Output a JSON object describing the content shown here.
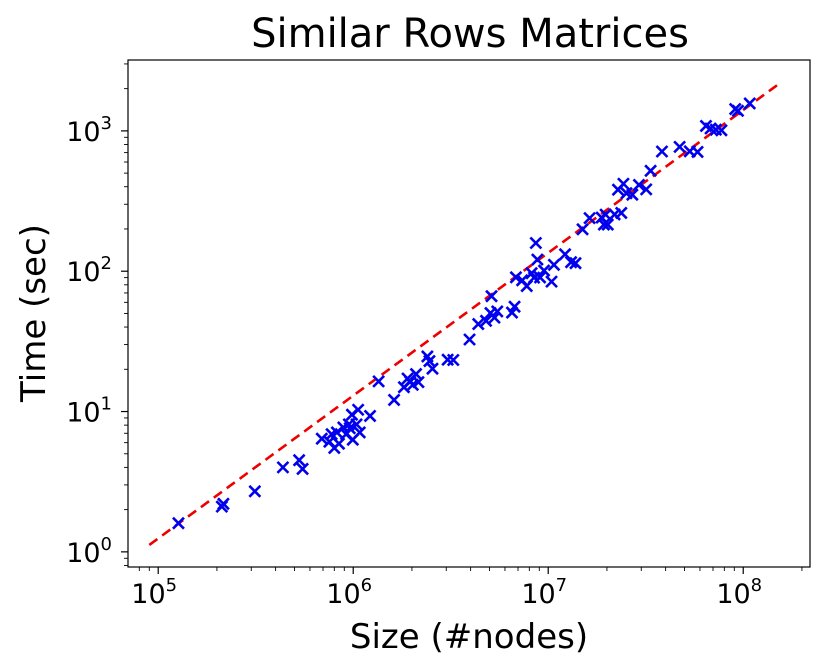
{
  "chart_data": {
    "type": "scatter",
    "title": "Similar Rows Matrices",
    "xlabel": "Size (#nodes)",
    "ylabel": "Time (sec)",
    "xscale": "log",
    "yscale": "log",
    "xlim": [
      70000,
      220000000
    ],
    "ylim": [
      0.78,
      3200
    ],
    "x_ticks": [
      {
        "base": "10",
        "exp": "5",
        "value": 100000
      },
      {
        "base": "10",
        "exp": "6",
        "value": 1000000
      },
      {
        "base": "10",
        "exp": "7",
        "value": 10000000
      },
      {
        "base": "10",
        "exp": "8",
        "value": 100000000
      }
    ],
    "y_ticks": [
      {
        "base": "10",
        "exp": "0",
        "value": 1
      },
      {
        "base": "10",
        "exp": "1",
        "value": 10
      },
      {
        "base": "10",
        "exp": "2",
        "value": 100
      },
      {
        "base": "10",
        "exp": "3",
        "value": 1000
      }
    ],
    "grid": false,
    "legend": "none",
    "colors": {
      "points": "#0000ee",
      "fit_line": "#ee0000"
    },
    "series": [
      {
        "marker": "x",
        "points": [
          [
            127000,
            1.6
          ],
          [
            212000,
            2.1
          ],
          [
            216000,
            2.2
          ],
          [
            313000,
            2.7
          ],
          [
            436000,
            4.0
          ],
          [
            528000,
            4.5
          ],
          [
            550000,
            3.9
          ],
          [
            690000,
            6.4
          ],
          [
            755000,
            6.1
          ],
          [
            775000,
            6.9
          ],
          [
            800000,
            5.5
          ],
          [
            825000,
            7.1
          ],
          [
            845000,
            5.9
          ],
          [
            890000,
            7.7
          ],
          [
            920000,
            6.9
          ],
          [
            950000,
            8.1
          ],
          [
            960000,
            7.6
          ],
          [
            985000,
            9.5
          ],
          [
            995000,
            6.3
          ],
          [
            1040000,
            8.1
          ],
          [
            1060000,
            10.3
          ],
          [
            1080000,
            7.1
          ],
          [
            1220000,
            9.3
          ],
          [
            1350000,
            16.4
          ],
          [
            1620000,
            12.1
          ],
          [
            1820000,
            14.9
          ],
          [
            1900000,
            17.2
          ],
          [
            1960000,
            16.3
          ],
          [
            2020000,
            15.5
          ],
          [
            2100000,
            18.5
          ],
          [
            2160000,
            16.2
          ],
          [
            2400000,
            24.7
          ],
          [
            2460000,
            22.9
          ],
          [
            2550000,
            20.2
          ],
          [
            3050000,
            23.4
          ],
          [
            3260000,
            23.3
          ],
          [
            3950000,
            32.6
          ],
          [
            4380000,
            42.0
          ],
          [
            4800000,
            44.3
          ],
          [
            5060000,
            50.3
          ],
          [
            5120000,
            66.4
          ],
          [
            5300000,
            46.7
          ],
          [
            5480000,
            51.7
          ],
          [
            6520000,
            50.7
          ],
          [
            6720000,
            55.9
          ],
          [
            6830000,
            90.5
          ],
          [
            7350000,
            86.1
          ],
          [
            7760000,
            78.4
          ],
          [
            8220000,
            96.8
          ],
          [
            8460000,
            90.0
          ],
          [
            8640000,
            158.9
          ],
          [
            8800000,
            121.0
          ],
          [
            9080000,
            90.3
          ],
          [
            9520000,
            101.0
          ],
          [
            10400000,
            84.3
          ],
          [
            10700000,
            111.0
          ],
          [
            12200000,
            132.0
          ],
          [
            13100000,
            116.0
          ],
          [
            13800000,
            114.0
          ],
          [
            15000000,
            199.0
          ],
          [
            16300000,
            239.0
          ],
          [
            18800000,
            241.0
          ],
          [
            19300000,
            215.0
          ],
          [
            19700000,
            253.0
          ],
          [
            20200000,
            215.0
          ],
          [
            21900000,
            254.0
          ],
          [
            22800000,
            381.0
          ],
          [
            23700000,
            260.0
          ],
          [
            24300000,
            420.0
          ],
          [
            25200000,
            360.0
          ],
          [
            27000000,
            351.0
          ],
          [
            29200000,
            412.0
          ],
          [
            31800000,
            383.0
          ],
          [
            33500000,
            519.0
          ],
          [
            38300000,
            713.0
          ],
          [
            47200000,
            769.0
          ],
          [
            53200000,
            715.0
          ],
          [
            58300000,
            708.0
          ],
          [
            64400000,
            1085.0
          ],
          [
            68000000,
            1040.0
          ],
          [
            72400000,
            1020.0
          ],
          [
            77300000,
            1010.0
          ],
          [
            91000000,
            1430.0
          ],
          [
            94000000,
            1390.0
          ],
          [
            108000000,
            1570.0
          ]
        ]
      }
    ],
    "fit_line": {
      "style": "dashed",
      "from": [
        90000,
        1.12
      ],
      "to": [
        155000000,
        2200
      ]
    }
  }
}
